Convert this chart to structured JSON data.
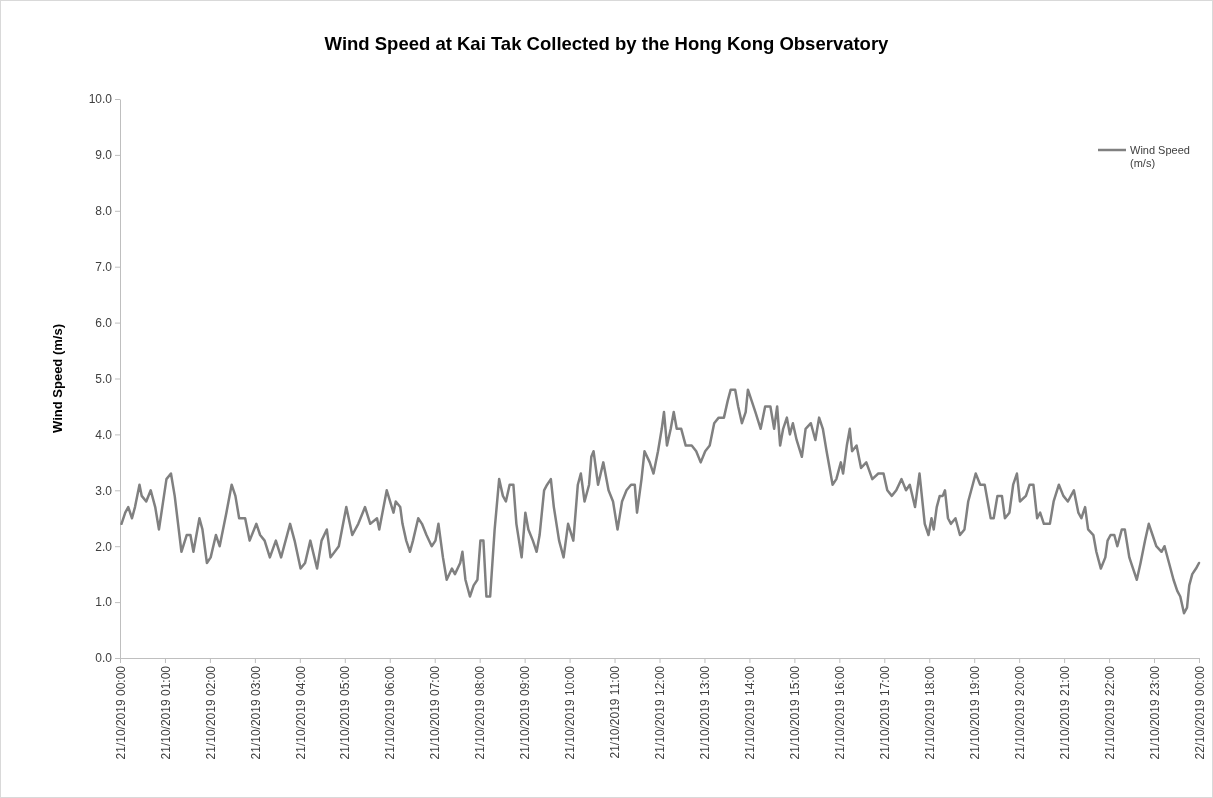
{
  "chart_data": {
    "type": "line",
    "title": "Wind Speed at Kai Tak Collected by the Hong Kong Observatory",
    "ylabel": "Wind Speed (m/s)",
    "xlim": [
      "2019-10-21T00:00",
      "2019-10-22T00:00"
    ],
    "xticks": [
      {
        "value": "2019-10-21T00:00",
        "label": "21/10/2019 00:00"
      },
      {
        "value": "2019-10-21T01:00",
        "label": "21/10/2019 01:00"
      },
      {
        "value": "2019-10-21T02:00",
        "label": "21/10/2019 02:00"
      },
      {
        "value": "2019-10-21T03:00",
        "label": "21/10/2019 03:00"
      },
      {
        "value": "2019-10-21T04:00",
        "label": "21/10/2019 04:00"
      },
      {
        "value": "2019-10-21T05:00",
        "label": "21/10/2019 05:00"
      },
      {
        "value": "2019-10-21T06:00",
        "label": "21/10/2019 06:00"
      },
      {
        "value": "2019-10-21T07:00",
        "label": "21/10/2019 07:00"
      },
      {
        "value": "2019-10-21T08:00",
        "label": "21/10/2019 08:00"
      },
      {
        "value": "2019-10-21T09:00",
        "label": "21/10/2019 09:00"
      },
      {
        "value": "2019-10-21T10:00",
        "label": "21/10/2019 10:00"
      },
      {
        "value": "2019-10-21T11:00",
        "label": "21/10/2019 11:00"
      },
      {
        "value": "2019-10-21T12:00",
        "label": "21/10/2019 12:00"
      },
      {
        "value": "2019-10-21T13:00",
        "label": "21/10/2019 13:00"
      },
      {
        "value": "2019-10-21T14:00",
        "label": "21/10/2019 14:00"
      },
      {
        "value": "2019-10-21T15:00",
        "label": "21/10/2019 15:00"
      },
      {
        "value": "2019-10-21T16:00",
        "label": "21/10/2019 16:00"
      },
      {
        "value": "2019-10-21T17:00",
        "label": "21/10/2019 17:00"
      },
      {
        "value": "2019-10-21T18:00",
        "label": "21/10/2019 18:00"
      },
      {
        "value": "2019-10-21T19:00",
        "label": "21/10/2019 19:00"
      },
      {
        "value": "2019-10-21T20:00",
        "label": "21/10/2019 20:00"
      },
      {
        "value": "2019-10-21T21:00",
        "label": "21/10/2019 21:00"
      },
      {
        "value": "2019-10-21T22:00",
        "label": "21/10/2019 22:00"
      },
      {
        "value": "2019-10-21T23:00",
        "label": "21/10/2019 23:00"
      },
      {
        "value": "2019-10-22T00:00",
        "label": "22/10/2019 00:00"
      }
    ],
    "ylim": [
      0,
      10
    ],
    "yticks": [
      {
        "value": 0,
        "label": "0.0"
      },
      {
        "value": 1,
        "label": "1.0"
      },
      {
        "value": 2,
        "label": "2.0"
      },
      {
        "value": 3,
        "label": "3.0"
      },
      {
        "value": 4,
        "label": "4.0"
      },
      {
        "value": 5,
        "label": "5.0"
      },
      {
        "value": 6,
        "label": "6.0"
      },
      {
        "value": 7,
        "label": "7.0"
      },
      {
        "value": 8,
        "label": "8.0"
      },
      {
        "value": 9,
        "label": "9.0"
      },
      {
        "value": 10,
        "label": "10.0"
      }
    ],
    "grid": false,
    "legend": "top right",
    "marker": "none",
    "line_style": "solid",
    "series": [
      {
        "name": "Wind Speed (m/s)",
        "color": "#808080",
        "x": [
          "2019-10-21T00:02",
          "2019-10-21T00:07",
          "2019-10-21T00:11",
          "2019-10-21T00:16",
          "2019-10-21T00:20",
          "2019-10-21T00:26",
          "2019-10-21T00:29",
          "2019-10-21T00:35",
          "2019-10-21T00:41",
          "2019-10-21T00:47",
          "2019-10-21T00:52",
          "2019-10-21T01:02",
          "2019-10-21T01:08",
          "2019-10-21T01:13",
          "2019-10-21T01:22",
          "2019-10-21T01:29",
          "2019-10-21T01:34",
          "2019-10-21T01:38",
          "2019-10-21T01:46",
          "2019-10-21T01:50",
          "2019-10-21T01:56",
          "2019-10-21T02:01",
          "2019-10-21T02:08",
          "2019-10-21T02:13",
          "2019-10-21T02:22",
          "2019-10-21T02:29",
          "2019-10-21T02:34",
          "2019-10-21T02:39",
          "2019-10-21T02:47",
          "2019-10-21T02:53",
          "2019-10-21T03:02",
          "2019-10-21T03:07",
          "2019-10-21T03:13",
          "2019-10-21T03:20",
          "2019-10-21T03:28",
          "2019-10-21T03:35",
          "2019-10-21T03:47",
          "2019-10-21T03:53",
          "2019-10-21T04:01",
          "2019-10-21T04:07",
          "2019-10-21T04:14",
          "2019-10-21T04:23",
          "2019-10-21T04:29",
          "2019-10-21T04:36",
          "2019-10-21T04:41",
          "2019-10-21T04:52",
          "2019-10-21T05:02",
          "2019-10-21T05:10",
          "2019-10-21T05:18",
          "2019-10-21T05:27",
          "2019-10-21T05:34",
          "2019-10-21T05:43",
          "2019-10-21T05:46",
          "2019-10-21T05:56",
          "2019-10-21T06:05",
          "2019-10-21T06:08",
          "2019-10-21T06:14",
          "2019-10-21T06:17",
          "2019-10-21T06:22",
          "2019-10-21T06:27",
          "2019-10-21T06:31",
          "2019-10-21T06:38",
          "2019-10-21T06:43",
          "2019-10-21T06:49",
          "2019-10-21T06:56",
          "2019-10-21T07:01",
          "2019-10-21T07:05",
          "2019-10-21T07:11",
          "2019-10-21T07:16",
          "2019-10-21T07:23",
          "2019-10-21T07:27",
          "2019-10-21T07:34",
          "2019-10-21T07:37",
          "2019-10-21T07:41",
          "2019-10-21T07:47",
          "2019-10-21T07:52",
          "2019-10-21T07:57",
          "2019-10-21T08:01",
          "2019-10-21T08:05",
          "2019-10-21T08:09",
          "2019-10-21T08:14",
          "2019-10-21T08:20",
          "2019-10-21T08:26",
          "2019-10-21T08:31",
          "2019-10-21T08:35",
          "2019-10-21T08:40",
          "2019-10-21T08:45",
          "2019-10-21T08:49",
          "2019-10-21T08:56",
          "2019-10-21T09:01",
          "2019-10-21T09:05",
          "2019-10-21T09:11",
          "2019-10-21T09:16",
          "2019-10-21T09:20",
          "2019-10-21T09:26",
          "2019-10-21T09:30",
          "2019-10-21T09:35",
          "2019-10-21T09:39",
          "2019-10-21T09:46",
          "2019-10-21T09:52",
          "2019-10-21T09:58",
          "2019-10-21T10:05",
          "2019-10-21T10:11",
          "2019-10-21T10:15",
          "2019-10-21T10:20",
          "2019-10-21T10:26",
          "2019-10-21T10:29",
          "2019-10-21T10:32",
          "2019-10-21T10:38",
          "2019-10-21T10:45",
          "2019-10-21T10:52",
          "2019-10-21T10:58",
          "2019-10-21T11:04",
          "2019-10-21T11:10",
          "2019-10-21T11:16",
          "2019-10-21T11:22",
          "2019-10-21T11:27",
          "2019-10-21T11:30",
          "2019-10-21T11:36",
          "2019-10-21T11:40",
          "2019-10-21T11:47",
          "2019-10-21T11:52",
          "2019-10-21T11:58",
          "2019-10-21T12:03",
          "2019-10-21T12:06",
          "2019-10-21T12:10",
          "2019-10-21T12:15",
          "2019-10-21T12:19",
          "2019-10-21T12:23",
          "2019-10-21T12:29",
          "2019-10-21T12:35",
          "2019-10-21T12:43",
          "2019-10-21T12:49",
          "2019-10-21T12:55",
          "2019-10-21T13:01",
          "2019-10-21T13:07",
          "2019-10-21T13:13",
          "2019-10-21T13:19",
          "2019-10-21T13:26",
          "2019-10-21T13:31",
          "2019-10-21T13:35",
          "2019-10-21T13:41",
          "2019-10-21T13:45",
          "2019-10-21T13:50",
          "2019-10-21T13:55",
          "2019-10-21T13:58",
          "2019-10-21T14:03",
          "2019-10-21T14:08",
          "2019-10-21T14:15",
          "2019-10-21T14:21",
          "2019-10-21T14:28",
          "2019-10-21T14:33",
          "2019-10-21T14:37",
          "2019-10-21T14:41",
          "2019-10-21T14:45",
          "2019-10-21T14:50",
          "2019-10-21T14:54",
          "2019-10-21T14:58",
          "2019-10-21T15:03",
          "2019-10-21T15:10",
          "2019-10-21T15:15",
          "2019-10-21T15:22",
          "2019-10-21T15:28",
          "2019-10-21T15:33",
          "2019-10-21T15:38",
          "2019-10-21T15:43",
          "2019-10-21T15:51",
          "2019-10-21T15:56",
          "2019-10-21T16:02",
          "2019-10-21T16:05",
          "2019-10-21T16:10",
          "2019-10-21T16:14",
          "2019-10-21T16:17",
          "2019-10-21T16:23",
          "2019-10-21T16:29",
          "2019-10-21T16:36",
          "2019-10-21T16:44",
          "2019-10-21T16:52",
          "2019-10-21T16:59",
          "2019-10-21T17:04",
          "2019-10-21T17:10",
          "2019-10-21T17:16",
          "2019-10-21T17:23",
          "2019-10-21T17:29",
          "2019-10-21T17:34",
          "2019-10-21T17:41",
          "2019-10-21T17:47",
          "2019-10-21T17:54",
          "2019-10-21T17:59",
          "2019-10-21T18:03",
          "2019-10-21T18:06",
          "2019-10-21T18:10",
          "2019-10-21T18:14",
          "2019-10-21T18:18",
          "2019-10-21T18:21",
          "2019-10-21T18:25",
          "2019-10-21T18:29",
          "2019-10-21T18:35",
          "2019-10-21T18:41",
          "2019-10-21T18:47",
          "2019-10-21T18:52",
          "2019-10-21T18:58",
          "2019-10-21T19:02",
          "2019-10-21T19:08",
          "2019-10-21T19:14",
          "2019-10-21T19:22",
          "2019-10-21T19:26",
          "2019-10-21T19:31",
          "2019-10-21T19:37",
          "2019-10-21T19:41",
          "2019-10-21T19:47",
          "2019-10-21T19:52",
          "2019-10-21T19:57",
          "2019-10-21T20:01",
          "2019-10-21T20:09",
          "2019-10-21T20:14",
          "2019-10-21T20:19",
          "2019-10-21T20:24",
          "2019-10-21T20:28",
          "2019-10-21T20:33",
          "2019-10-21T20:41",
          "2019-10-21T20:46",
          "2019-10-21T20:53",
          "2019-10-21T20:59",
          "2019-10-21T21:05",
          "2019-10-21T21:13",
          "2019-10-21T21:19",
          "2019-10-21T21:23",
          "2019-10-21T21:28",
          "2019-10-21T21:32",
          "2019-10-21T21:39",
          "2019-10-21T21:43",
          "2019-10-21T21:49",
          "2019-10-21T21:55",
          "2019-10-21T21:58",
          "2019-10-21T22:02",
          "2019-10-21T22:07",
          "2019-10-21T22:11",
          "2019-10-21T22:17",
          "2019-10-21T22:21",
          "2019-10-21T22:27",
          "2019-10-21T22:32",
          "2019-10-21T22:37",
          "2019-10-21T22:42",
          "2019-10-21T22:48",
          "2019-10-21T22:53",
          "2019-10-21T22:58",
          "2019-10-21T23:03",
          "2019-10-21T23:10",
          "2019-10-21T23:14",
          "2019-10-21T23:20",
          "2019-10-21T23:26",
          "2019-10-21T23:31",
          "2019-10-21T23:35",
          "2019-10-21T23:40",
          "2019-10-21T23:44",
          "2019-10-21T23:47",
          "2019-10-21T23:51",
          "2019-10-21T23:56",
          "2019-10-22T00:00"
        ],
        "values": [
          2.4,
          2.6,
          2.7,
          2.5,
          2.7,
          3.1,
          2.9,
          2.8,
          3.0,
          2.7,
          2.3,
          3.2,
          3.3,
          2.9,
          1.9,
          2.2,
          2.2,
          1.9,
          2.5,
          2.3,
          1.7,
          1.8,
          2.2,
          2.0,
          2.6,
          3.1,
          2.9,
          2.5,
          2.5,
          2.1,
          2.4,
          2.2,
          2.1,
          1.8,
          2.1,
          1.8,
          2.4,
          2.1,
          1.6,
          1.7,
          2.1,
          1.6,
          2.1,
          2.3,
          1.8,
          2.0,
          2.7,
          2.2,
          2.4,
          2.7,
          2.4,
          2.5,
          2.3,
          3.0,
          2.6,
          2.8,
          2.7,
          2.4,
          2.1,
          1.9,
          2.1,
          2.5,
          2.4,
          2.2,
          2.0,
          2.1,
          2.4,
          1.8,
          1.4,
          1.6,
          1.5,
          1.7,
          1.9,
          1.4,
          1.1,
          1.3,
          1.4,
          2.1,
          2.1,
          1.1,
          1.1,
          2.3,
          3.2,
          2.9,
          2.8,
          3.1,
          3.1,
          2.4,
          1.8,
          2.6,
          2.3,
          2.1,
          1.9,
          2.2,
          3.0,
          3.1,
          3.2,
          2.7,
          2.1,
          1.8,
          2.4,
          2.1,
          3.1,
          3.3,
          2.8,
          3.1,
          3.6,
          3.7,
          3.1,
          3.5,
          3.0,
          2.8,
          2.3,
          2.8,
          3.0,
          3.1,
          3.1,
          2.6,
          3.2,
          3.7,
          3.5,
          3.3,
          3.7,
          4.1,
          4.4,
          3.8,
          4.1,
          4.4,
          4.1,
          4.1,
          3.8,
          3.8,
          3.7,
          3.5,
          3.7,
          3.8,
          4.2,
          4.3,
          4.3,
          4.6,
          4.8,
          4.8,
          4.5,
          4.2,
          4.4,
          4.8,
          4.6,
          4.4,
          4.1,
          4.5,
          4.5,
          4.1,
          4.5,
          3.8,
          4.1,
          4.3,
          4.0,
          4.2,
          3.9,
          3.6,
          4.1,
          4.2,
          3.9,
          4.3,
          4.1,
          3.7,
          3.1,
          3.2,
          3.5,
          3.3,
          3.8,
          4.1,
          3.7,
          3.8,
          3.4,
          3.5,
          3.2,
          3.3,
          3.3,
          3.0,
          2.9,
          3.0,
          3.2,
          3.0,
          3.1,
          2.7,
          3.3,
          2.4,
          2.2,
          2.5,
          2.3,
          2.7,
          2.9,
          2.9,
          3.0,
          2.5,
          2.4,
          2.5,
          2.2,
          2.3,
          2.8,
          3.1,
          3.3,
          3.1,
          3.1,
          2.5,
          2.5,
          2.9,
          2.9,
          2.5,
          2.6,
          3.1,
          3.3,
          2.8,
          2.9,
          3.1,
          3.1,
          2.5,
          2.6,
          2.4,
          2.4,
          2.8,
          3.1,
          2.9,
          2.8,
          3.0,
          2.6,
          2.5,
          2.7,
          2.3,
          2.2,
          1.9,
          1.6,
          1.8,
          2.1,
          2.2,
          2.2,
          2.0,
          2.3,
          2.3,
          1.8,
          1.6,
          1.4,
          1.7,
          2.1,
          2.4,
          2.2,
          2.0,
          1.9,
          2.0,
          1.7,
          1.4,
          1.2,
          1.1,
          0.8,
          0.9,
          1.3,
          1.5,
          1.6,
          1.7
        ]
      }
    ]
  }
}
